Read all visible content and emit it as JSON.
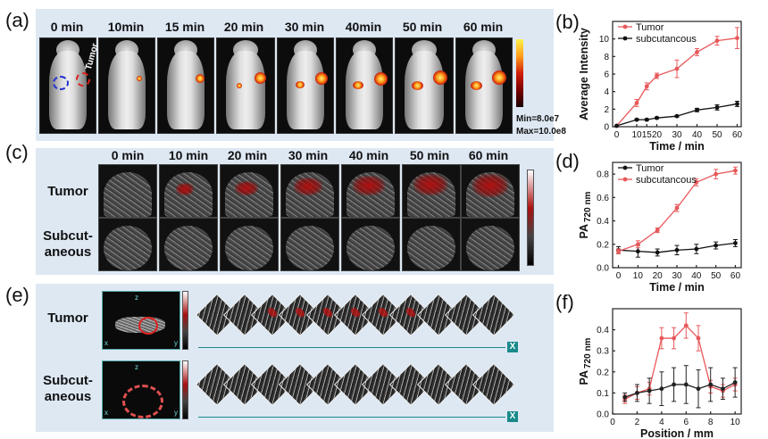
{
  "panel_labels": {
    "a": "(a)",
    "b": "(b)",
    "c": "(c)",
    "d": "(d)",
    "e": "(e)",
    "f": "(f)"
  },
  "panel_a": {
    "times": [
      "0 min",
      "10min",
      "15 min",
      "20 min",
      "30 min",
      "40min",
      "50 min",
      "60 min"
    ],
    "label_subcutaneous": "Subcutancous",
    "label_tumor": "Tumor",
    "colorbar_min": "Min=8.0e7",
    "colorbar_max": "Max=10.0e8"
  },
  "panel_c": {
    "times": [
      "0 min",
      "10 min",
      "20 min",
      "30 min",
      "40 min",
      "50 min",
      "60 min"
    ],
    "row1": "Tumor",
    "row2_line1": "Subcut-",
    "row2_line2": "aneous"
  },
  "panel_e": {
    "row1": "Tumor",
    "row2_line1": "Subcut-",
    "row2_line2": "aneous",
    "axis_end": "X",
    "box_z": "z",
    "box_x": "x",
    "box_y": "y"
  },
  "colors": {
    "tumor": "#e8585a",
    "subcutaneous": "#111111",
    "panel_bg": "#dde8f3"
  },
  "chart_data": [
    {
      "id": "b",
      "type": "line",
      "xlabel": "Time / min",
      "ylabel": "Average Intensity",
      "xlim": [
        -2,
        62
      ],
      "ylim": [
        0,
        12
      ],
      "xticks": [
        0,
        10,
        15,
        20,
        30,
        40,
        50,
        60
      ],
      "yticks": [
        0,
        2,
        4,
        6,
        8,
        10
      ],
      "legend": "top-left",
      "series": [
        {
          "name": "Tumor",
          "color": "#e8585a",
          "x": [
            0,
            10,
            15,
            20,
            30,
            40,
            50,
            60
          ],
          "y": [
            0.1,
            2.7,
            4.6,
            5.8,
            6.6,
            8.5,
            9.8,
            10.1
          ],
          "err": [
            0,
            0.4,
            0.4,
            0.3,
            1.0,
            0.4,
            0.5,
            1.2
          ]
        },
        {
          "name": "subcutancous",
          "color": "#111111",
          "x": [
            0,
            10,
            15,
            20,
            30,
            40,
            50,
            60
          ],
          "y": [
            0.1,
            0.8,
            0.8,
            1.0,
            1.2,
            1.9,
            2.2,
            2.6
          ],
          "err": [
            0,
            0.1,
            0.1,
            0.1,
            0.1,
            0.2,
            0.3,
            0.3
          ]
        }
      ]
    },
    {
      "id": "d",
      "type": "line",
      "xlabel": "Time / min",
      "ylabel": "PA",
      "ylabel_sub": "720 nm",
      "xlim": [
        -3,
        63
      ],
      "ylim": [
        0,
        0.9
      ],
      "xticks": [
        0,
        10,
        20,
        30,
        40,
        50,
        60
      ],
      "yticks": [
        0.0,
        0.2,
        0.4,
        0.6,
        0.8
      ],
      "legend": "top-left",
      "series": [
        {
          "name": "Tumor",
          "color": "#111111",
          "x": [
            0,
            10,
            20,
            30,
            40,
            50,
            60
          ],
          "y": [
            0.15,
            0.14,
            0.13,
            0.15,
            0.16,
            0.19,
            0.21
          ],
          "err": [
            0.03,
            0.05,
            0.03,
            0.04,
            0.04,
            0.03,
            0.03
          ]
        },
        {
          "name": "subcutancous",
          "color": "#e8585a",
          "x": [
            0,
            10,
            20,
            30,
            40,
            50,
            60
          ],
          "y": [
            0.14,
            0.2,
            0.32,
            0.51,
            0.73,
            0.8,
            0.83
          ],
          "err": [
            0.02,
            0.03,
            0.02,
            0.03,
            0.03,
            0.04,
            0.03
          ]
        }
      ]
    },
    {
      "id": "f",
      "type": "line",
      "xlabel": "Position / mm",
      "ylabel": "PA",
      "ylabel_sub": "720 nm",
      "xlim": [
        0,
        10.5
      ],
      "ylim": [
        0,
        0.5
      ],
      "xticks": [
        0,
        2,
        4,
        6,
        8,
        10
      ],
      "yticks": [
        0.0,
        0.1,
        0.2,
        0.3,
        0.4
      ],
      "series": [
        {
          "name": "",
          "color": "#e8585a",
          "x": [
            1,
            2,
            3,
            4,
            5,
            6,
            7,
            8,
            9,
            10
          ],
          "y": [
            0.07,
            0.1,
            0.12,
            0.36,
            0.36,
            0.42,
            0.36,
            0.13,
            0.11,
            0.14
          ],
          "err": [
            0.02,
            0.03,
            0.03,
            0.05,
            0.05,
            0.06,
            0.06,
            0.03,
            0.03,
            0.03
          ]
        },
        {
          "name": "",
          "color": "#222222",
          "x": [
            1,
            2,
            3,
            4,
            5,
            6,
            7,
            8,
            9,
            10
          ],
          "y": [
            0.08,
            0.1,
            0.11,
            0.12,
            0.14,
            0.14,
            0.12,
            0.14,
            0.12,
            0.15
          ],
          "err": [
            0.02,
            0.04,
            0.06,
            0.08,
            0.08,
            0.09,
            0.09,
            0.08,
            0.05,
            0.07
          ]
        }
      ]
    }
  ]
}
